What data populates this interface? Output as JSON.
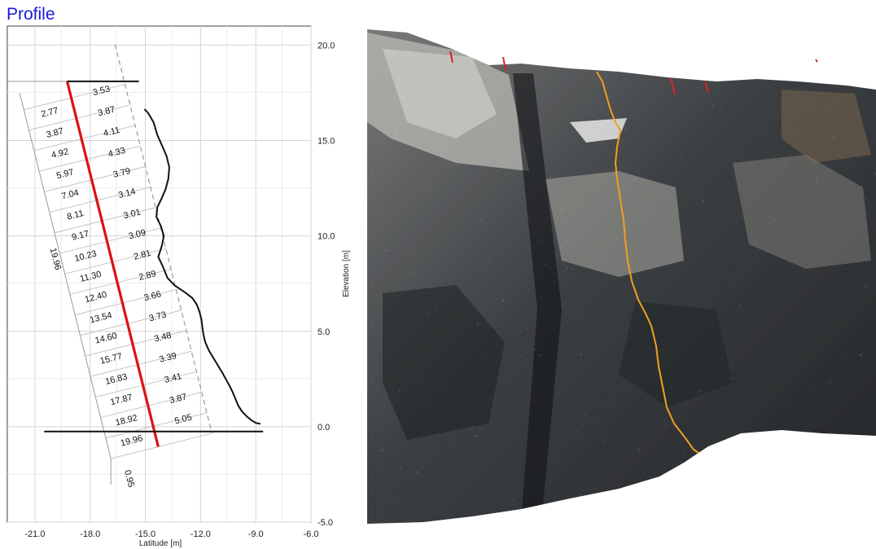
{
  "title": "Profile",
  "chart_data": {
    "type": "line",
    "xlabel": "Latitude [m]",
    "ylabel": "Elevation [m]",
    "xlim": [
      -22.5,
      -6.0
    ],
    "ylim": [
      -5.0,
      21.0
    ],
    "x_ticks": [
      "-21.0",
      "-18.0",
      "-15.0",
      "-12.0",
      "-9.0",
      "-6.0"
    ],
    "y_ticks": [
      "20.0",
      "15.0",
      "10.0",
      "5.0",
      "0.0",
      "-5.0"
    ],
    "grid": true,
    "series": [
      {
        "type": "line",
        "color": "#111111",
        "x": [
          -15.05,
          -14.85,
          -14.55,
          -14.35,
          -14.1,
          -13.85,
          -13.7,
          -13.75,
          -13.9,
          -14.1,
          -14.35,
          -14.4,
          -14.15,
          -14.0,
          -14.1,
          -14.3,
          -14.05,
          -13.8,
          -13.4,
          -12.85,
          -12.45,
          -12.2,
          -12.05,
          -11.95,
          -11.9,
          -11.85,
          -11.75,
          -11.55,
          -11.3,
          -11.05,
          -10.8,
          -10.6,
          -10.4,
          -10.25,
          -10.1,
          -9.95,
          -9.75,
          -9.5,
          -9.25,
          -9.0,
          -8.75
        ],
        "y": [
          16.65,
          16.45,
          15.95,
          15.3,
          14.75,
          14.2,
          13.6,
          13.0,
          12.45,
          12.0,
          11.5,
          11.0,
          10.5,
          10.0,
          9.5,
          8.9,
          8.4,
          7.8,
          7.4,
          7.05,
          6.75,
          6.4,
          6.0,
          5.6,
          5.2,
          4.85,
          4.45,
          4.0,
          3.6,
          3.2,
          2.8,
          2.45,
          2.1,
          1.8,
          1.45,
          1.1,
          0.8,
          0.55,
          0.35,
          0.2,
          0.15
        ]
      },
      {
        "type": "line",
        "color": "#dd1111",
        "x": [
          -19.25,
          -14.3
        ],
        "y": [
          18.1,
          -1.05
        ]
      },
      {
        "type": "line",
        "color": "#111111",
        "x": [
          -19.25,
          -15.35
        ],
        "y": [
          18.1,
          18.1
        ]
      },
      {
        "type": "line",
        "color": "#111111",
        "x": [
          -20.5,
          -8.6
        ],
        "y": [
          -0.25,
          -0.25
        ]
      }
    ],
    "segment_labels": {
      "along": [
        "2.77",
        "3.87",
        "4.92",
        "5.97",
        "7.04",
        "8.11",
        "9.17",
        "10.23",
        "11.30",
        "12.40",
        "13.54",
        "14.60",
        "15.77",
        "16.83",
        "17.87",
        "18.92",
        "19.96"
      ],
      "offset": [
        "3.53",
        "3.87",
        "4.11",
        "4.33",
        "3.79",
        "3.14",
        "3.01",
        "3.09",
        "2.81",
        "2.89",
        "3.66",
        "3.73",
        "3.48",
        "3.39",
        "3.41",
        "3.87",
        "5.05"
      ],
      "total_length": "19.96",
      "bottom_offset": "0.95"
    }
  },
  "photo": {
    "orange_line": "#f0a020",
    "red_ticks": "#dd2222"
  }
}
